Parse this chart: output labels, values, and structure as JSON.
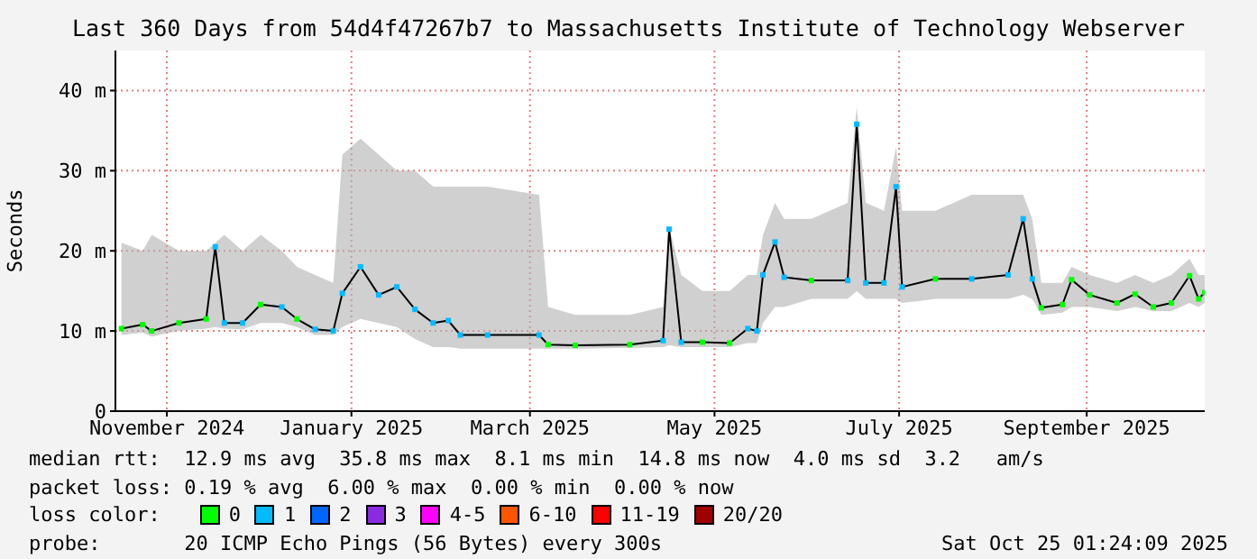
{
  "chart_data": {
    "type": "line",
    "title": "Last 360 Days from 54d4f47267b7 to Massachusetts Institute of Technology Webserver",
    "ylabel": "Seconds",
    "legend_title": "loss color:",
    "legend": "bottom",
    "grid": true,
    "xlim": [
      "2024-10-30",
      "2025-10-25"
    ],
    "xticks": [
      {
        "value": "2024-11-16",
        "label": "November 2024"
      },
      {
        "value": "2025-01-16",
        "label": "January 2025"
      },
      {
        "value": "2025-03-16",
        "label": "March 2025"
      },
      {
        "value": "2025-05-16",
        "label": "May 2025"
      },
      {
        "value": "2025-07-16",
        "label": "July 2025"
      },
      {
        "value": "2025-09-16",
        "label": "September 2025"
      }
    ],
    "ylim": [
      0,
      45
    ],
    "yticks": [
      0,
      {
        "value": 10,
        "label": "10 m"
      },
      {
        "value": 20,
        "label": "20 m"
      },
      {
        "value": 30,
        "label": "30 m"
      },
      {
        "value": 40,
        "label": "40 m"
      }
    ],
    "x": [
      "2024-11-01",
      "2024-11-08",
      "2024-11-11",
      "2024-11-20",
      "2024-11-29",
      "2024-12-02",
      "2024-12-05",
      "2024-12-11",
      "2024-12-17",
      "2024-12-24",
      "2024-12-29",
      "2025-01-04",
      "2025-01-10",
      "2025-01-13",
      "2025-01-19",
      "2025-01-25",
      "2025-01-31",
      "2025-02-06",
      "2025-02-12",
      "2025-02-17",
      "2025-02-21",
      "2025-03-02",
      "2025-03-19",
      "2025-03-22",
      "2025-03-31",
      "2025-04-18",
      "2025-04-29",
      "2025-05-01",
      "2025-05-05",
      "2025-05-12",
      "2025-05-21",
      "2025-05-27",
      "2025-05-30",
      "2025-06-01",
      "2025-06-05",
      "2025-06-08",
      "2025-06-17",
      "2025-06-29",
      "2025-07-02",
      "2025-07-05",
      "2025-07-11",
      "2025-07-15",
      "2025-07-17",
      "2025-07-28",
      "2025-08-09",
      "2025-08-21",
      "2025-08-26",
      "2025-08-29",
      "2025-09-01",
      "2025-09-08",
      "2025-09-11",
      "2025-09-17",
      "2025-09-26",
      "2025-10-02",
      "2025-10-08",
      "2025-10-14",
      "2025-10-20",
      "2025-10-23",
      "2025-10-25"
    ],
    "series": [
      {
        "color": "#000000",
        "values": [
          10.3,
          10.8,
          10,
          11,
          11.5,
          20.5,
          11,
          11,
          13.3,
          13,
          11.5,
          10.2,
          10,
          14.7,
          18,
          14.5,
          15.5,
          12.7,
          11,
          11.3,
          9.5,
          9.5,
          9.5,
          8.3,
          8.2,
          8.3,
          8.8,
          22.7,
          8.6,
          8.6,
          8.5,
          10.3,
          10,
          17,
          21.1,
          16.7,
          16.3,
          16.3,
          35.8,
          16,
          16,
          28,
          15.5,
          16.5,
          16.5,
          17,
          24,
          16.5,
          12.9,
          13.3,
          16.4,
          14.5,
          13.5,
          14.6,
          13,
          13.5,
          16.9,
          14,
          14.8
        ],
        "lower": [
          9.5,
          9.8,
          9.3,
          10,
          10.3,
          10.5,
          10.3,
          10.2,
          11,
          11,
          10.5,
          9.5,
          9.5,
          10.5,
          11.5,
          11,
          10.5,
          9,
          8,
          8,
          7.8,
          7.8,
          7.8,
          7.8,
          7.8,
          7.9,
          8,
          8.2,
          8,
          8,
          8,
          8.5,
          8.5,
          11,
          13,
          13,
          14,
          14,
          15,
          14,
          14,
          14,
          13.5,
          14,
          14,
          14,
          14.5,
          14,
          12,
          12.3,
          13,
          13,
          12.5,
          13,
          12.5,
          12.5,
          13.5,
          13,
          13.5
        ],
        "upper": [
          21,
          20,
          22,
          20,
          20,
          21,
          22,
          20,
          22,
          20,
          18,
          17,
          16,
          32,
          34,
          32,
          30,
          30,
          28,
          28,
          28,
          28,
          27,
          13,
          12,
          12,
          13,
          23,
          17,
          15,
          15,
          17,
          17,
          22,
          26,
          24,
          24,
          26,
          38,
          26,
          25,
          33,
          25,
          25,
          27,
          27,
          27,
          24,
          16,
          16,
          18,
          17,
          16,
          17,
          16,
          17,
          19,
          17,
          17
        ]
      },
      {
        "type": "scatter",
        "name": "0",
        "color": "#00ff00",
        "x": [
          "2024-11-01",
          "2024-11-08",
          "2024-11-11",
          "2024-11-20",
          "2024-11-29",
          "2024-12-17",
          "2024-12-29",
          "2025-03-22",
          "2025-03-31",
          "2025-04-18",
          "2025-05-12",
          "2025-05-21",
          "2025-06-17",
          "2025-07-28",
          "2025-09-01",
          "2025-09-08",
          "2025-09-11",
          "2025-09-17",
          "2025-09-26",
          "2025-10-02",
          "2025-10-08",
          "2025-10-14",
          "2025-10-20",
          "2025-10-23",
          "2025-10-25"
        ],
        "values": [
          10.3,
          10.8,
          10,
          11,
          11.5,
          13.3,
          11.5,
          8.3,
          8.2,
          8.3,
          8.6,
          8.5,
          16.3,
          16.5,
          12.9,
          13.3,
          16.4,
          14.5,
          13.5,
          14.6,
          13,
          13.5,
          16.9,
          14,
          14.8
        ]
      },
      {
        "type": "scatter",
        "name": "1",
        "color": "#00bbff",
        "x": [
          "2024-12-02",
          "2024-12-05",
          "2024-12-11",
          "2024-12-24",
          "2025-01-04",
          "2025-01-10",
          "2025-01-13",
          "2025-01-19",
          "2025-01-25",
          "2025-01-31",
          "2025-02-06",
          "2025-02-12",
          "2025-02-17",
          "2025-02-21",
          "2025-03-02",
          "2025-03-19",
          "2025-04-29",
          "2025-05-01",
          "2025-05-05",
          "2025-05-27",
          "2025-05-30",
          "2025-06-01",
          "2025-06-05",
          "2025-06-08",
          "2025-06-29",
          "2025-07-02",
          "2025-07-05",
          "2025-07-11",
          "2025-07-15",
          "2025-07-17",
          "2025-08-09",
          "2025-08-21",
          "2025-08-26",
          "2025-08-29"
        ],
        "values": [
          20.5,
          11,
          11,
          13,
          10.2,
          10,
          14.7,
          18,
          14.5,
          15.5,
          12.7,
          11,
          11.3,
          9.5,
          9.5,
          9.5,
          8.8,
          22.7,
          8.6,
          10.3,
          10,
          17,
          21.1,
          16.7,
          16.3,
          35.8,
          16,
          16,
          28,
          15.5,
          16.5,
          17,
          24,
          16.5
        ]
      },
      {
        "type": "scatter",
        "name": "2",
        "color": "#0066ff",
        "values": [
          null,
          null,
          null,
          null,
          null,
          null,
          null,
          null,
          null,
          null,
          null,
          null,
          null,
          null,
          null,
          null,
          null,
          null,
          null,
          null,
          null,
          null,
          null,
          null,
          null,
          null,
          null,
          null,
          null,
          null,
          null,
          null,
          null,
          null,
          null,
          null,
          null,
          null,
          null,
          null,
          null,
          null,
          null,
          null,
          null,
          null,
          null,
          null,
          null,
          null,
          null,
          null,
          null,
          null,
          null,
          null,
          null,
          null,
          null
        ]
      },
      {
        "type": "scatter",
        "name": "3",
        "color": "#8a2be2",
        "values": [
          null,
          null,
          null,
          null,
          null,
          null,
          null,
          null,
          null,
          null,
          null,
          null,
          null,
          null,
          null,
          null,
          null,
          null,
          null,
          null,
          null,
          null,
          null,
          null,
          null,
          null,
          null,
          null,
          null,
          null,
          null,
          null,
          null,
          null,
          null,
          null,
          null,
          null,
          null,
          null,
          null,
          null,
          null,
          null,
          null,
          null,
          null,
          null,
          null,
          null,
          null,
          null,
          null,
          null,
          null,
          null,
          null,
          null,
          null
        ]
      },
      {
        "type": "scatter",
        "name": "4-5",
        "color": "#ff00ff",
        "values": [
          null,
          null,
          null,
          null,
          null,
          null,
          null,
          null,
          null,
          null,
          null,
          null,
          null,
          null,
          null,
          null,
          null,
          null,
          null,
          null,
          null,
          null,
          null,
          null,
          null,
          null,
          null,
          null,
          null,
          null,
          null,
          null,
          null,
          null,
          null,
          null,
          null,
          null,
          null,
          null,
          null,
          null,
          null,
          null,
          null,
          null,
          null,
          null,
          null,
          null,
          null,
          null,
          null,
          null,
          null,
          null,
          null,
          null,
          null
        ]
      },
      {
        "type": "scatter",
        "name": "6-10",
        "color": "#ff5500",
        "values": [
          null,
          null,
          null,
          null,
          null,
          null,
          null,
          null,
          null,
          null,
          null,
          null,
          null,
          null,
          null,
          null,
          null,
          null,
          null,
          null,
          null,
          null,
          null,
          null,
          null,
          null,
          null,
          null,
          null,
          null,
          null,
          null,
          null,
          null,
          null,
          null,
          null,
          null,
          null,
          null,
          null,
          null,
          null,
          null,
          null,
          null,
          null,
          null,
          null,
          null,
          null,
          null,
          null,
          null,
          null,
          null,
          null,
          null,
          null
        ]
      },
      {
        "type": "scatter",
        "name": "11-19",
        "color": "#ff0000",
        "values": [
          null,
          null,
          null,
          null,
          null,
          null,
          null,
          null,
          null,
          null,
          null,
          null,
          null,
          null,
          null,
          null,
          null,
          null,
          null,
          null,
          null,
          null,
          null,
          null,
          null,
          null,
          null,
          null,
          null,
          null,
          null,
          null,
          null,
          null,
          null,
          null,
          null,
          null,
          null,
          null,
          null,
          null,
          null,
          null,
          null,
          null,
          null,
          null,
          null,
          null,
          null,
          null,
          null,
          null,
          null,
          null,
          null,
          null,
          null
        ]
      },
      {
        "type": "scatter",
        "name": "20/20",
        "color": "#a10000",
        "values": [
          null,
          null,
          null,
          null,
          null,
          null,
          null,
          null,
          null,
          null,
          null,
          null,
          null,
          null,
          null,
          null,
          null,
          null,
          null,
          null,
          null,
          null,
          null,
          null,
          null,
          null,
          null,
          null,
          null,
          null,
          null,
          null,
          null,
          null,
          null,
          null,
          null,
          null,
          null,
          null,
          null,
          null,
          null,
          null,
          null,
          null,
          null,
          null,
          null,
          null,
          null,
          null,
          null,
          null,
          null,
          null,
          null,
          null,
          null
        ]
      }
    ],
    "annotations": [
      "median rtt:  12.9 ms avg  35.8 ms max  8.1 ms min  14.8 ms now  4.0 ms sd  3.2   am/s",
      "packet loss: 0.19 % avg  6.00 % max  0.00 % min  0.00 % now",
      "probe:       20 ICMP Echo Pings (56 Bytes) every 300s",
      "Sat Oct 25 01:24:09 2025"
    ]
  }
}
